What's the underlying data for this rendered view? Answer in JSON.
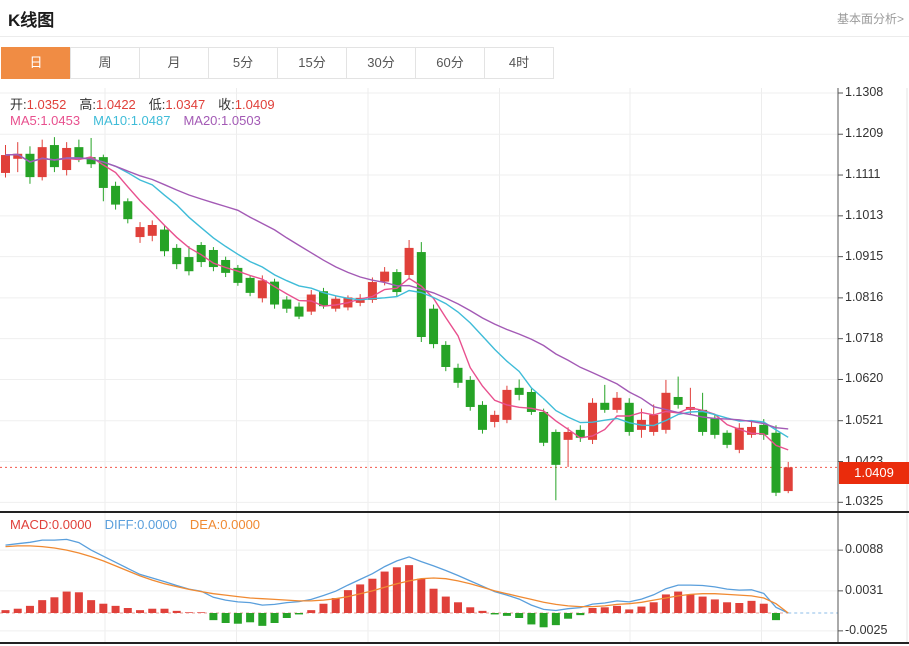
{
  "header": {
    "title": "K线图",
    "link": "基本面分析>"
  },
  "tabs": {
    "items": [
      "日",
      "周",
      "月",
      "5分",
      "15分",
      "30分",
      "60分",
      "4时"
    ],
    "active": "日"
  },
  "main_legend": {
    "ohlc": [
      {
        "label": "开:",
        "value": "1.0352"
      },
      {
        "label": "高:",
        "value": "1.0422"
      },
      {
        "label": "低:",
        "value": "1.0347"
      },
      {
        "label": "收:",
        "value": "1.0409"
      }
    ],
    "ohlc_value_color": "#e0403a",
    "ma": [
      {
        "label": "MA5:",
        "value": "1.0453",
        "color": "#e8508e"
      },
      {
        "label": "MA10:",
        "value": "1.0487",
        "color": "#3fbcd8"
      },
      {
        "label": "MA20:",
        "value": "1.0503",
        "color": "#a35ab5"
      }
    ]
  },
  "macd_legend": [
    {
      "label": "MACD:",
      "value": "0.0000",
      "color": "#e0403a"
    },
    {
      "label": "DIFF:",
      "value": "0.0000",
      "color": "#5a9fdc"
    },
    {
      "label": "DEA:",
      "value": "0.0000",
      "color": "#f08a32"
    }
  ],
  "price_axis": {
    "ticks": [
      "1.1308",
      "1.1209",
      "1.1111",
      "1.1013",
      "1.0915",
      "1.0816",
      "1.0718",
      "1.0620",
      "1.0521",
      "1.0423",
      "1.0325"
    ],
    "badge": "1.0409"
  },
  "macd_axis": {
    "ticks": [
      "0.0088",
      "0.0031",
      "-0.0025"
    ]
  },
  "colors": {
    "up": "#e0403a",
    "down": "#26a326",
    "ma5": "#e8508e",
    "ma10": "#3fbcd8",
    "ma20": "#a35ab5",
    "diff": "#5a9fdc",
    "dea": "#f08a32",
    "badge": "#ea2c0c",
    "price_line": "#f4584c",
    "tab_active": "#f08c44",
    "grid": "#efefef",
    "axis": "#555555",
    "divider": "#222222"
  },
  "chart_data": {
    "type": "candlestick+macd",
    "title": "K线图 (daily K-line with MA5/MA10/MA20 and MACD)",
    "up_means": "close >= open (red)",
    "price_ylim": [
      1.0325,
      1.1308
    ],
    "last_price": 1.0409,
    "ma_periods": [
      5,
      10,
      20
    ],
    "candles_ohlc": [
      [
        1.1116,
        1.1183,
        1.1105,
        1.1159
      ],
      [
        1.115,
        1.119,
        1.1118,
        1.1162
      ],
      [
        1.1162,
        1.118,
        1.109,
        1.1106
      ],
      [
        1.1106,
        1.1196,
        1.1098,
        1.1178
      ],
      [
        1.1183,
        1.1202,
        1.1118,
        1.113
      ],
      [
        1.1123,
        1.119,
        1.111,
        1.1176
      ],
      [
        1.1178,
        1.1196,
        1.1142,
        1.1152
      ],
      [
        1.1154,
        1.12,
        1.1128,
        1.1137
      ],
      [
        1.1154,
        1.116,
        1.1048,
        1.108
      ],
      [
        1.1085,
        1.1095,
        1.1028,
        1.104
      ],
      [
        1.1048,
        1.1055,
        1.0995,
        1.1005
      ],
      [
        1.0962,
        1.0998,
        1.0948,
        1.0986
      ],
      [
        1.0965,
        1.1002,
        1.0952,
        1.0991
      ],
      [
        1.098,
        1.099,
        1.0916,
        1.0928
      ],
      [
        1.0936,
        1.0945,
        1.0885,
        1.0897
      ],
      [
        1.0914,
        1.094,
        1.087,
        1.088
      ],
      [
        1.0943,
        1.095,
        1.089,
        1.0902
      ],
      [
        1.0931,
        1.0938,
        1.088,
        1.089
      ],
      [
        1.0907,
        1.0915,
        1.0866,
        1.0876
      ],
      [
        1.0888,
        1.0895,
        1.0845,
        1.0852
      ],
      [
        1.0864,
        1.087,
        1.082,
        1.0828
      ],
      [
        1.0815,
        1.087,
        1.0805,
        1.0858
      ],
      [
        1.0855,
        1.0862,
        1.079,
        1.08
      ],
      [
        1.0812,
        1.082,
        1.078,
        1.079
      ],
      [
        1.0795,
        1.0805,
        1.0765,
        1.0771
      ],
      [
        1.0783,
        1.0835,
        1.0775,
        1.0824
      ],
      [
        1.0832,
        1.084,
        1.079,
        1.0796
      ],
      [
        1.079,
        1.082,
        1.0783,
        1.0814
      ],
      [
        1.0793,
        1.0822,
        1.0786,
        1.0817
      ],
      [
        1.0804,
        1.0825,
        1.0796,
        1.0816
      ],
      [
        1.0811,
        1.0865,
        1.0804,
        1.0854
      ],
      [
        1.0855,
        1.089,
        1.0846,
        1.0879
      ],
      [
        1.0878,
        1.0885,
        1.082,
        1.083
      ],
      [
        1.0871,
        1.0955,
        1.086,
        1.0936
      ],
      [
        1.0926,
        1.095,
        1.071,
        1.0722
      ],
      [
        1.079,
        1.08,
        1.0695,
        1.0705
      ],
      [
        1.0703,
        1.0712,
        1.064,
        1.065
      ],
      [
        1.0648,
        1.0658,
        1.06,
        1.0612
      ],
      [
        1.0619,
        1.0628,
        1.0545,
        1.0554
      ],
      [
        1.0559,
        1.0568,
        1.049,
        1.0499
      ],
      [
        1.0518,
        1.0545,
        1.0505,
        1.0535
      ],
      [
        1.0523,
        1.0605,
        1.0515,
        1.0595
      ],
      [
        1.06,
        1.062,
        1.057,
        1.0583
      ],
      [
        1.059,
        1.0598,
        1.0535,
        1.0542
      ],
      [
        1.0542,
        1.055,
        1.046,
        1.0468
      ],
      [
        1.0494,
        1.05,
        1.033,
        1.0415
      ],
      [
        1.0475,
        1.0505,
        1.041,
        1.0494
      ],
      [
        1.0499,
        1.051,
        1.047,
        1.048
      ],
      [
        1.0475,
        1.0575,
        1.0465,
        1.0564
      ],
      [
        1.0564,
        1.0607,
        1.054,
        1.0547
      ],
      [
        1.0547,
        1.059,
        1.054,
        1.0576
      ],
      [
        1.0564,
        1.0575,
        1.0485,
        1.0494
      ],
      [
        1.0499,
        1.055,
        1.048,
        1.0523
      ],
      [
        1.0494,
        1.056,
        1.0485,
        1.0535
      ],
      [
        1.0499,
        1.0619,
        1.049,
        1.0588
      ],
      [
        1.0578,
        1.0627,
        1.055,
        1.0559
      ],
      [
        1.0547,
        1.06,
        1.0535,
        1.0554
      ],
      [
        1.0547,
        1.0588,
        1.0485,
        1.0494
      ],
      [
        1.0528,
        1.0535,
        1.0478,
        1.0487
      ],
      [
        1.0492,
        1.0498,
        1.0455,
        1.0463
      ],
      [
        1.0451,
        1.0515,
        1.0443,
        1.0504
      ],
      [
        1.0487,
        1.052,
        1.048,
        1.0506
      ],
      [
        1.0511,
        1.0525,
        1.0475,
        1.0487
      ],
      [
        1.0492,
        1.051,
        1.034,
        1.0348
      ],
      [
        1.0352,
        1.0422,
        1.0347,
        1.0409
      ]
    ],
    "macd": {
      "ylim": [
        -0.0025,
        0.0088
      ],
      "hist_formula": "2*(diff-dea)",
      "diff": [
        0.0095,
        0.0097,
        0.0099,
        0.0102,
        0.0102,
        0.0103,
        0.00985,
        0.0088,
        0.00795,
        0.0071,
        0.00625,
        0.0054,
        0.0049,
        0.0044,
        0.00385,
        0.00335,
        0.00305,
        0.0022,
        0.0018,
        0.00155,
        0.00145,
        0.0011,
        0.0012,
        0.00145,
        0.0016,
        0.0019,
        0.00245,
        0.00305,
        0.0039,
        0.0047,
        0.0055,
        0.0065,
        0.0073,
        0.00785,
        0.0072,
        0.0066,
        0.00595,
        0.00525,
        0.0045,
        0.00375,
        0.003,
        0.0025,
        0.00195,
        0.0011,
        0.0005,
        0.00035,
        0.0006,
        0.00075,
        0.00125,
        0.0014,
        0.0017,
        0.00155,
        0.00195,
        0.00255,
        0.0034,
        0.0039,
        0.0039,
        0.00385,
        0.00365,
        0.00335,
        0.0032,
        0.00325,
        0.00275,
        0.0008,
        0.0
      ],
      "dea": [
        0.0093,
        0.0094,
        0.0094,
        0.0093,
        0.0091,
        0.0088,
        0.0084,
        0.0079,
        0.0073,
        0.0066,
        0.0059,
        0.0052,
        0.0046,
        0.0041,
        0.0037,
        0.0033,
        0.003,
        0.0027,
        0.0025,
        0.0023,
        0.0021,
        0.002,
        0.0019,
        0.0018,
        0.0017,
        0.0017,
        0.0018,
        0.002,
        0.0023,
        0.0027,
        0.0031,
        0.0036,
        0.0041,
        0.0045,
        0.0048,
        0.0049,
        0.0048,
        0.0045,
        0.0041,
        0.0036,
        0.0031,
        0.0027,
        0.0023,
        0.0019,
        0.0015,
        0.0012,
        0.001,
        0.0009,
        0.0009,
        0.001,
        0.0012,
        0.0013,
        0.0015,
        0.0018,
        0.0021,
        0.0024,
        0.0026,
        0.0027,
        0.0027,
        0.0026,
        0.0025,
        0.0024,
        0.0021,
        0.0013,
        0.0
      ]
    }
  }
}
